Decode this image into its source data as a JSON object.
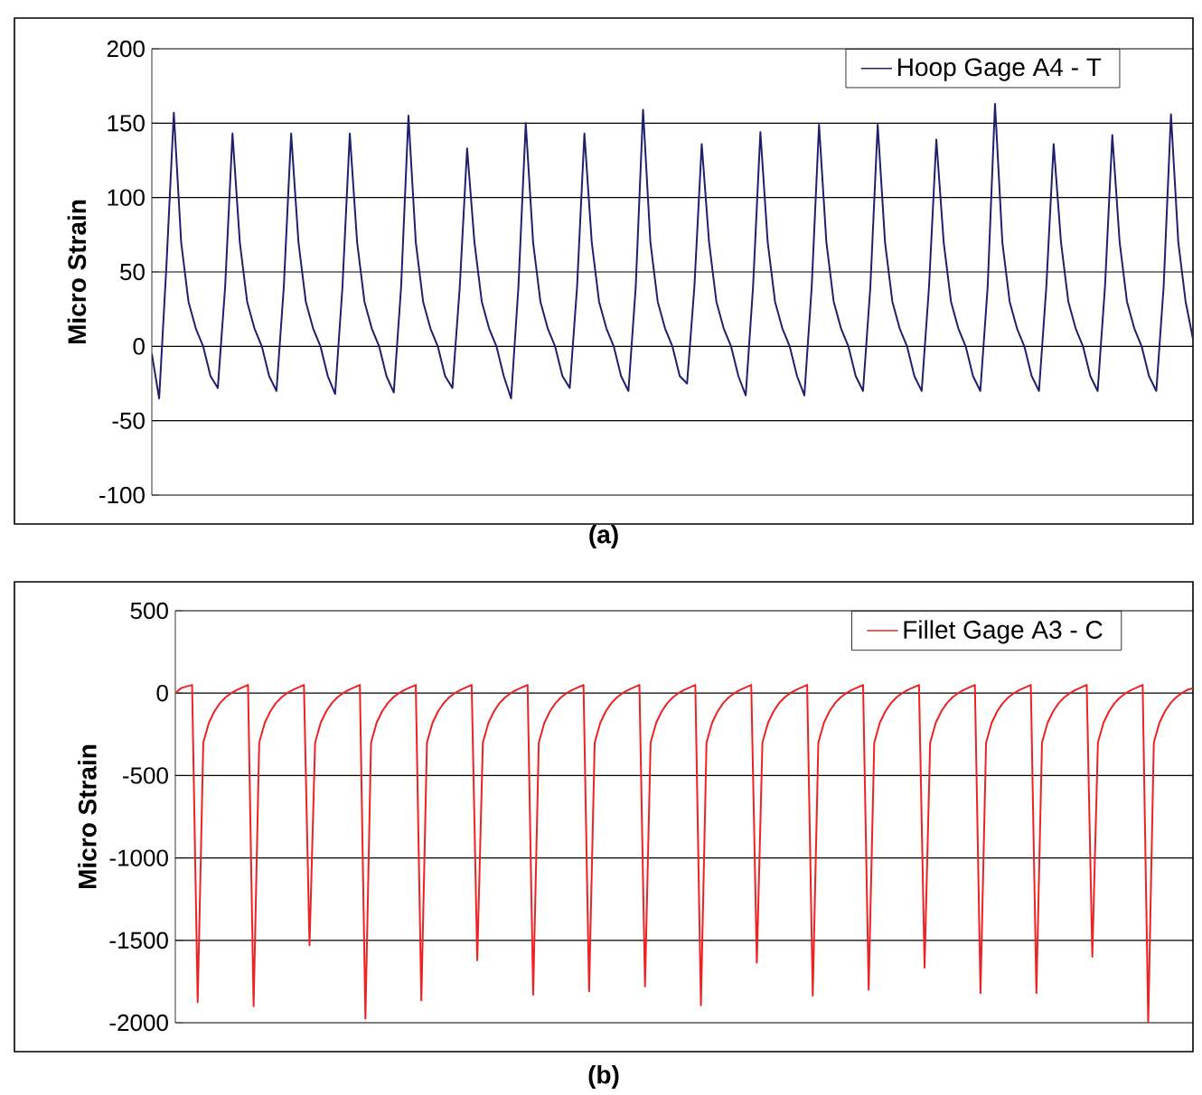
{
  "chart_data": [
    {
      "type": "line",
      "ylabel": "Micro Strain",
      "annotations": [
        "(a)"
      ],
      "ylim": [
        -100,
        200
      ],
      "yticks": [
        -100,
        -50,
        0,
        50,
        100,
        150,
        200
      ],
      "grid": "y",
      "legend": "top right",
      "marker": "none",
      "line_style": "solid",
      "categories": [
        null,
        null,
        null,
        null,
        null,
        null,
        null,
        null,
        null,
        null,
        null,
        null,
        null,
        null,
        null,
        null,
        null,
        null,
        null,
        null,
        null,
        null,
        null,
        null,
        null,
        null,
        null,
        null,
        null,
        null,
        null,
        null,
        null,
        null,
        null,
        null,
        null,
        null,
        null,
        null,
        null,
        null,
        null,
        null,
        null,
        null,
        null,
        null,
        null,
        null,
        null,
        null,
        null,
        null,
        null,
        null,
        null,
        null,
        null,
        null,
        null,
        null,
        null,
        null,
        null,
        null,
        null,
        null,
        null,
        null,
        null,
        null,
        null,
        null,
        null,
        null,
        null,
        null,
        null,
        null,
        null,
        null,
        null,
        null,
        null,
        null,
        null,
        null,
        null,
        null,
        null,
        null,
        null,
        null,
        null,
        null,
        null,
        null,
        null,
        null,
        null,
        null,
        null,
        null,
        null,
        null,
        null,
        null,
        null,
        null,
        null,
        null,
        null,
        null,
        null,
        null,
        null,
        null,
        null,
        null,
        null,
        null,
        null,
        null,
        null,
        null,
        null,
        null,
        null,
        null,
        null,
        null,
        null,
        null,
        null,
        null,
        null,
        null,
        null,
        null,
        null,
        null,
        null
      ],
      "series": [
        {
          "name": "Hoop Gage A4 - T",
          "color": "#1f1f6e",
          "values": [
            -5,
            -35,
            55,
            157,
            70,
            30,
            12,
            0,
            -20,
            -28,
            40,
            143,
            70,
            30,
            12,
            0,
            -20,
            -30,
            40,
            143,
            70,
            30,
            12,
            0,
            -20,
            -32,
            40,
            143,
            70,
            30,
            12,
            0,
            -20,
            -31,
            40,
            155,
            70,
            30,
            12,
            0,
            -20,
            -28,
            40,
            133,
            70,
            30,
            12,
            0,
            -20,
            -35,
            40,
            150,
            70,
            30,
            12,
            0,
            -20,
            -28,
            40,
            143,
            70,
            30,
            12,
            0,
            -20,
            -30,
            40,
            159,
            70,
            30,
            12,
            0,
            -20,
            -25,
            40,
            136,
            70,
            30,
            12,
            0,
            -20,
            -33,
            40,
            144,
            70,
            30,
            12,
            0,
            -20,
            -33,
            40,
            149,
            70,
            30,
            12,
            0,
            -20,
            -30,
            40,
            149,
            70,
            30,
            12,
            0,
            -20,
            -30,
            40,
            139,
            70,
            30,
            12,
            0,
            -20,
            -30,
            40,
            163,
            70,
            30,
            12,
            0,
            -20,
            -30,
            40,
            136,
            70,
            30,
            12,
            0,
            -20,
            -30,
            40,
            142,
            70,
            30,
            12,
            0,
            -20,
            -30,
            40,
            156,
            70,
            30,
            5
          ]
        }
      ]
    },
    {
      "type": "line",
      "ylabel": "Micro Strain",
      "annotations": [
        "(b)"
      ],
      "ylim": [
        -2000,
        500
      ],
      "yticks": [
        -2000,
        -1500,
        -1000,
        -500,
        0,
        500
      ],
      "grid": "y",
      "legend": "top right",
      "marker": "none",
      "line_style": "solid",
      "categories": [
        null,
        null,
        null,
        null,
        null,
        null,
        null,
        null,
        null,
        null,
        null,
        null,
        null,
        null,
        null,
        null,
        null,
        null,
        null,
        null,
        null,
        null,
        null,
        null,
        null,
        null,
        null,
        null,
        null,
        null,
        null,
        null,
        null,
        null,
        null,
        null,
        null,
        null,
        null,
        null,
        null,
        null,
        null,
        null,
        null,
        null,
        null,
        null,
        null,
        null,
        null,
        null,
        null,
        null,
        null,
        null,
        null,
        null,
        null,
        null,
        null,
        null,
        null,
        null,
        null,
        null,
        null,
        null,
        null,
        null,
        null,
        null,
        null,
        null,
        null,
        null,
        null,
        null,
        null,
        null,
        null,
        null,
        null,
        null,
        null,
        null,
        null,
        null,
        null,
        null,
        null,
        null,
        null,
        null,
        null,
        null,
        null,
        null,
        null,
        null,
        null,
        null,
        null,
        null,
        null,
        null,
        null,
        null,
        null,
        null,
        null,
        null,
        null,
        null,
        null,
        null,
        null,
        null,
        null,
        null,
        null,
        null,
        null,
        null,
        null,
        null,
        null,
        null,
        null,
        null,
        null,
        null,
        null,
        null,
        null,
        null,
        null,
        null,
        null,
        null,
        null,
        null,
        null,
        null,
        null,
        null,
        null,
        null,
        null,
        null,
        null,
        null,
        null,
        null,
        null,
        null,
        null,
        null,
        null,
        null,
        null,
        null,
        null,
        null,
        null,
        null,
        null,
        null,
        null,
        null,
        null,
        null,
        null,
        null,
        null,
        null,
        null,
        null,
        null,
        null,
        null,
        null,
        null
      ],
      "series": [
        {
          "name": "Fillet Gage A3 - C",
          "color": "#ee2222",
          "values": [
            0,
            30,
            40,
            50,
            -1875,
            -300,
            -180,
            -110,
            -60,
            -25,
            0,
            20,
            35,
            50,
            -1900,
            -300,
            -180,
            -110,
            -60,
            -25,
            0,
            20,
            35,
            50,
            -1530,
            -300,
            -180,
            -110,
            -60,
            -25,
            0,
            20,
            35,
            50,
            -1975,
            -300,
            -180,
            -110,
            -60,
            -25,
            0,
            20,
            35,
            50,
            -1865,
            -300,
            -180,
            -110,
            -60,
            -25,
            0,
            20,
            35,
            50,
            -1620,
            -300,
            -180,
            -110,
            -60,
            -25,
            0,
            20,
            35,
            50,
            -1830,
            -300,
            -180,
            -110,
            -60,
            -25,
            0,
            20,
            35,
            50,
            -1810,
            -300,
            -180,
            -110,
            -60,
            -25,
            0,
            20,
            35,
            50,
            -1780,
            -300,
            -180,
            -110,
            -60,
            -25,
            0,
            20,
            35,
            50,
            -1895,
            -300,
            -180,
            -110,
            -60,
            -25,
            0,
            20,
            35,
            50,
            -1635,
            -300,
            -180,
            -110,
            -60,
            -25,
            0,
            20,
            35,
            50,
            -1835,
            -300,
            -180,
            -110,
            -60,
            -25,
            0,
            20,
            35,
            50,
            -1800,
            -300,
            -180,
            -110,
            -60,
            -25,
            0,
            20,
            35,
            50,
            -1665,
            -300,
            -180,
            -110,
            -60,
            -25,
            0,
            20,
            35,
            50,
            -1820,
            -300,
            -180,
            -110,
            -60,
            -25,
            0,
            20,
            35,
            50,
            -1820,
            -300,
            -180,
            -110,
            -60,
            -25,
            0,
            20,
            35,
            50,
            -1600,
            -300,
            -180,
            -110,
            -60,
            -25,
            0,
            20,
            35,
            50,
            -2000,
            -300,
            -180,
            -110,
            -60,
            -25,
            0,
            20,
            30
          ]
        }
      ]
    }
  ]
}
